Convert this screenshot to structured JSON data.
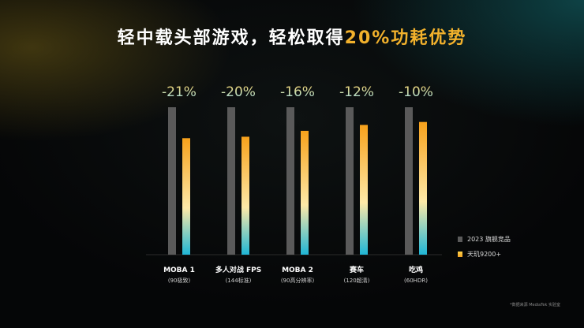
{
  "title": {
    "text_main": "轻中载头部游戏，轻松取得",
    "text_accent": "20%功耗优势"
  },
  "chart_data": {
    "type": "bar",
    "categories": [
      "MOBA 1",
      "多人对战 FPS",
      "MOBA 2",
      "赛车",
      "吃鸡"
    ],
    "category_notes": [
      "(90极致)",
      "(144标准)",
      "(90高分辨率)",
      "(120超清)",
      "(60HDR)"
    ],
    "data_labels": [
      "-21%",
      "-20%",
      "-16%",
      "-12%",
      "-10%"
    ],
    "series": [
      {
        "name": "2023 旗舰竞品",
        "values": [
          100,
          100,
          100,
          100,
          100
        ],
        "color": "#5a5a5a"
      },
      {
        "name": "天玑9200+",
        "values": [
          79,
          80,
          84,
          88,
          90
        ],
        "color": "#f5b22e"
      }
    ],
    "ylim": [
      0,
      100
    ],
    "grid": false,
    "legend": "bottom-right"
  },
  "colors": {
    "accent": "#f2b12c",
    "label_gold": "#f5d26b",
    "label_teal": "#9fe0e8",
    "bar_gradient_top": "#f7a11b",
    "bar_gradient_mid": "#fde9a8",
    "bar_gradient_bottom": "#1fb6d6"
  },
  "legend": {
    "items": [
      "2023 旗舰竞品",
      "天玑9200+"
    ]
  },
  "source_note": "*数据来源 MediaTek 实验室"
}
